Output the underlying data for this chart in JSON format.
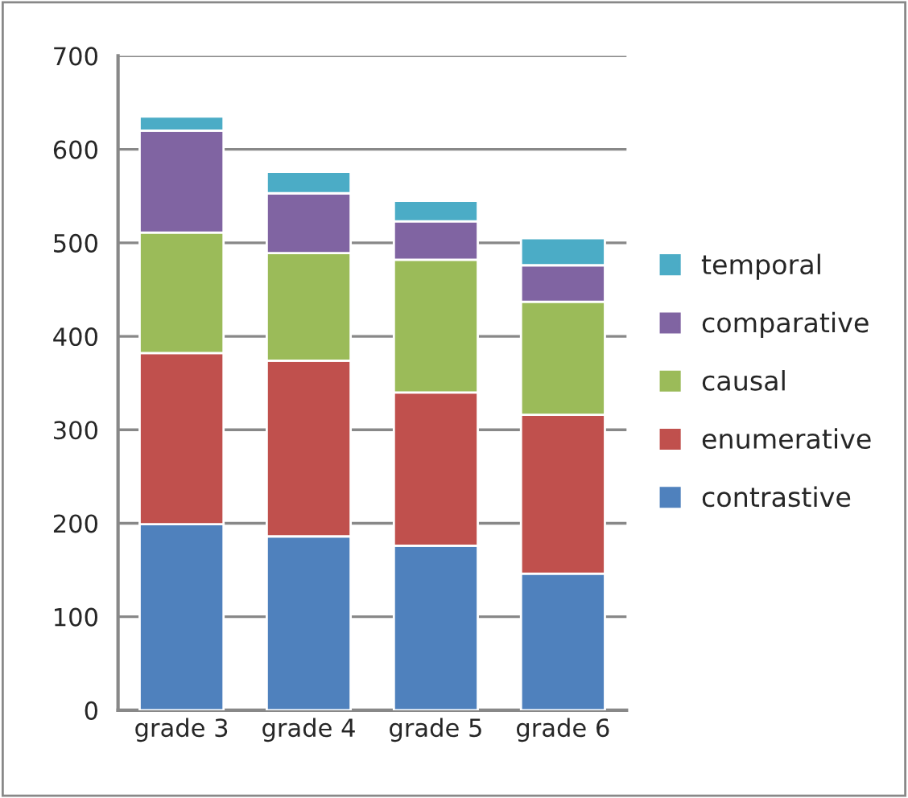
{
  "chart_data": {
    "type": "bar",
    "stacked": true,
    "categories": [
      "grade 3",
      "grade 4",
      "grade 5",
      "grade 6"
    ],
    "series": [
      {
        "name": "contrastive",
        "color": "#4f81bd",
        "values": [
          199,
          186,
          176,
          146
        ]
      },
      {
        "name": "enumerative",
        "color": "#c0504d",
        "values": [
          183,
          188,
          164,
          170
        ]
      },
      {
        "name": "causal",
        "color": "#9bbb59",
        "values": [
          129,
          115,
          142,
          121
        ]
      },
      {
        "name": "comparative",
        "color": "#8064a2",
        "values": [
          109,
          64,
          41,
          39
        ]
      },
      {
        "name": "temporal",
        "color": "#4bacc6",
        "values": [
          15,
          23,
          22,
          29
        ]
      }
    ],
    "ylim": [
      0,
      700
    ],
    "yticks": [
      0,
      100,
      200,
      300,
      400,
      500,
      600,
      700
    ],
    "grid": "y",
    "legend": "right"
  }
}
